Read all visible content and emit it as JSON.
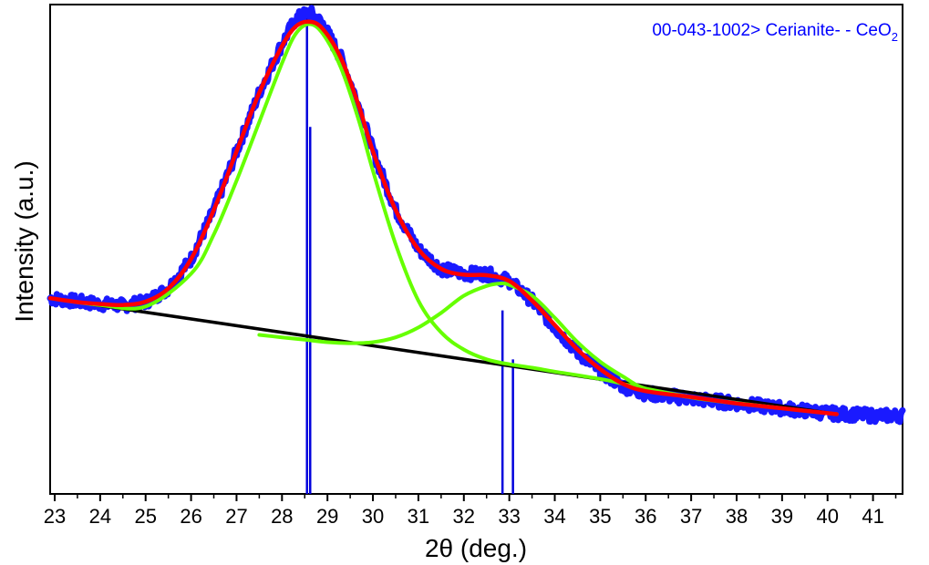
{
  "chart_data": {
    "type": "line",
    "title": "",
    "xlabel": "2θ (deg.)",
    "ylabel": "Intensity (a.u.)",
    "xlim": [
      22.9,
      41.65
    ],
    "ylim": [
      0,
      100
    ],
    "xticks": [
      "23",
      "24",
      "25",
      "26",
      "27",
      "28",
      "29",
      "30",
      "31",
      "32",
      "33",
      "34",
      "35",
      "36",
      "37",
      "38",
      "39",
      "40",
      "41"
    ],
    "y_ticks_labeled": false,
    "grid": false,
    "legend": "none",
    "annotation": {
      "text": "00-043-1002> Cerianite- - CeO",
      "subscript": "2",
      "position": "top-right"
    },
    "colors": {
      "observed": "#1a1aff",
      "fit": "#ff0000",
      "components": "#66ff00",
      "baseline": "#000000",
      "reference": "#0000dd",
      "annotation": "#0000ff"
    },
    "series": [
      {
        "role": "observed",
        "x": [
          22.9,
          23.5,
          24.0,
          24.5,
          25.0,
          25.5,
          26.0,
          26.5,
          27.0,
          27.5,
          28.0,
          28.3,
          28.6,
          28.9,
          29.3,
          29.7,
          30.0,
          30.5,
          31.0,
          31.5,
          32.0,
          32.5,
          33.0,
          33.5,
          34.0,
          34.5,
          35.0,
          35.5,
          36.0,
          37.0,
          38.0,
          39.0,
          40.0,
          41.0,
          41.65
        ],
        "y": [
          40.0,
          39.3,
          38.8,
          38.5,
          39.2,
          42.0,
          48.0,
          58.0,
          70.0,
          82.0,
          92.0,
          97.0,
          98.5,
          96.0,
          89.0,
          79.0,
          70.0,
          58.0,
          50.0,
          46.0,
          45.0,
          45.0,
          43.5,
          39.5,
          34.0,
          29.0,
          25.0,
          22.0,
          20.5,
          19.5,
          18.5,
          17.5,
          16.5,
          16.0,
          16.0
        ]
      },
      {
        "role": "fit",
        "x": [
          22.9,
          23.5,
          24.0,
          24.5,
          25.0,
          25.5,
          26.0,
          26.5,
          27.0,
          27.5,
          28.0,
          28.3,
          28.6,
          28.9,
          29.3,
          29.7,
          30.0,
          30.5,
          31.0,
          31.5,
          32.0,
          32.5,
          33.0,
          33.5,
          34.0,
          34.5,
          35.0,
          35.5,
          36.0,
          37.0,
          38.0,
          39.0,
          40.0,
          40.2
        ],
        "y": [
          40.0,
          39.2,
          38.8,
          38.6,
          39.3,
          42.0,
          48.0,
          58.0,
          70.0,
          82.0,
          91.5,
          95.5,
          96.5,
          95.0,
          89.0,
          79.0,
          70.0,
          58.0,
          50.0,
          46.0,
          44.8,
          44.7,
          43.5,
          39.5,
          34.5,
          29.5,
          25.5,
          22.5,
          21.0,
          19.8,
          18.5,
          17.5,
          16.5,
          16.3
        ]
      },
      {
        "role": "component",
        "x": [
          27.5,
          28.0,
          28.5,
          29.0,
          29.5,
          30.0,
          30.5,
          31.0,
          31.5,
          32.0,
          32.5,
          32.8,
          33.0,
          33.5,
          34.0,
          34.5,
          35.0,
          35.5,
          36.0,
          37.0,
          38.0,
          39.0,
          40.0,
          40.2
        ],
        "y": [
          32.5,
          32.0,
          31.5,
          31.0,
          30.8,
          31.0,
          32.0,
          34.0,
          37.0,
          40.5,
          42.5,
          43.0,
          42.7,
          40.5,
          36.0,
          31.0,
          27.0,
          24.0,
          21.5,
          19.7,
          18.5,
          17.5,
          16.5,
          16.3
        ]
      },
      {
        "role": "component",
        "x": [
          22.9,
          24.0,
          25.0,
          26.0,
          26.5,
          27.0,
          27.5,
          28.0,
          28.3,
          28.6,
          28.9,
          29.3,
          29.7,
          30.0,
          30.5,
          31.0,
          31.5,
          32.0,
          32.5,
          33.0,
          33.5,
          34.0,
          35.0,
          35.5,
          36.0,
          37.0,
          38.0,
          39.0,
          40.0,
          40.2
        ],
        "y": [
          40.0,
          38.6,
          38.3,
          45.0,
          53.0,
          64.0,
          76.0,
          88.0,
          94.0,
          96.0,
          94.0,
          87.0,
          76.0,
          66.0,
          51.0,
          39.5,
          33.0,
          29.5,
          27.5,
          26.5,
          25.8,
          25.0,
          23.5,
          22.5,
          21.5,
          19.8,
          18.6,
          17.5,
          16.5,
          16.3
        ]
      },
      {
        "role": "baseline",
        "x": [
          22.9,
          40.2
        ],
        "y": [
          40.0,
          16.3
        ]
      }
    ],
    "reference_lines": [
      {
        "x": 28.55,
        "height": 99.0
      },
      {
        "x": 28.62,
        "height": 75.0
      },
      {
        "x": 32.85,
        "height": 37.5
      },
      {
        "x": 33.08,
        "height": 27.5
      }
    ]
  }
}
